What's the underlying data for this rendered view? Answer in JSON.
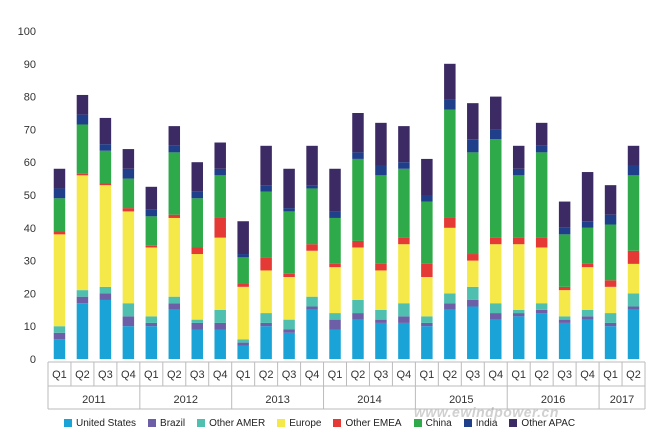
{
  "chart_data": {
    "type": "bar",
    "stacked": true,
    "ylim": [
      0,
      100
    ],
    "yticks": [
      0,
      10,
      20,
      30,
      40,
      50,
      60,
      70,
      80,
      90,
      100
    ],
    "grid": false,
    "legend_position": "bottom",
    "categories": [
      "Q1",
      "Q2",
      "Q3",
      "Q4",
      "Q1",
      "Q2",
      "Q3",
      "Q4",
      "Q1",
      "Q2",
      "Q3",
      "Q4",
      "Q1",
      "Q2",
      "Q3",
      "Q4",
      "Q1",
      "Q2",
      "Q3",
      "Q4",
      "Q1",
      "Q2",
      "Q3",
      "Q4",
      "Q1",
      "Q2"
    ],
    "year_groups": [
      {
        "label": "2011",
        "count": 4
      },
      {
        "label": "2012",
        "count": 4
      },
      {
        "label": "2013",
        "count": 4
      },
      {
        "label": "2014",
        "count": 4
      },
      {
        "label": "2015",
        "count": 4
      },
      {
        "label": "2016",
        "count": 4
      },
      {
        "label": "2017",
        "count": 2
      }
    ],
    "series": [
      {
        "name": "United States",
        "color": "#1aa3d6",
        "values": [
          6,
          17,
          18,
          10,
          10,
          15,
          9,
          9,
          4,
          10,
          8,
          15,
          9,
          12,
          11,
          11,
          10,
          15,
          16,
          12,
          13,
          14,
          11,
          12,
          10,
          15
        ]
      },
      {
        "name": "Brazil",
        "color": "#6c5fa8",
        "values": [
          2,
          2,
          2,
          3,
          1,
          2,
          2,
          2,
          1,
          1,
          1,
          1,
          3,
          2,
          1,
          2,
          1,
          2,
          2,
          2,
          1,
          1,
          1,
          1,
          1,
          1
        ]
      },
      {
        "name": "Other AMER",
        "color": "#4fc0b0",
        "values": [
          2,
          2,
          2,
          4,
          2,
          2,
          1,
          4,
          1,
          3,
          3,
          3,
          2,
          4,
          3,
          4,
          2,
          3,
          4,
          3,
          1,
          2,
          1,
          2,
          3,
          4
        ]
      },
      {
        "name": "Europe",
        "color": "#f5e94a",
        "values": [
          28,
          35,
          31,
          28,
          21,
          24,
          20,
          22,
          16,
          13,
          13,
          14,
          14,
          16,
          12,
          18,
          12,
          20,
          8,
          18,
          20,
          17,
          8,
          13,
          8,
          9
        ]
      },
      {
        "name": "Other EMEA",
        "color": "#e53935",
        "values": [
          1,
          0.5,
          0.5,
          1,
          0.5,
          1,
          2,
          6,
          1,
          4,
          1,
          2,
          1,
          2,
          2,
          2,
          4,
          3,
          2,
          2,
          2,
          3,
          1,
          1,
          2,
          4
        ]
      },
      {
        "name": "China",
        "color": "#2eaa4a",
        "values": [
          10,
          15,
          10,
          9,
          9,
          19,
          15,
          13,
          8,
          20,
          19,
          17,
          14,
          25,
          27,
          21,
          19,
          33,
          31,
          30,
          19,
          26,
          16,
          11,
          17,
          23
        ]
      },
      {
        "name": "India",
        "color": "#1f3f8a",
        "values": [
          3,
          3,
          2,
          3,
          2,
          2,
          2,
          2,
          1,
          2,
          1,
          1,
          2,
          2,
          3,
          2,
          2,
          3,
          4,
          3,
          2,
          2,
          2,
          2,
          3,
          3
        ]
      },
      {
        "name": "Other APAC",
        "color": "#3b2a63",
        "values": [
          6,
          6,
          8,
          6,
          7,
          6,
          9,
          8,
          10,
          12,
          12,
          12,
          13,
          12,
          13,
          11,
          11,
          11,
          11,
          10,
          7,
          7,
          8,
          15,
          9,
          6
        ]
      }
    ]
  }
}
